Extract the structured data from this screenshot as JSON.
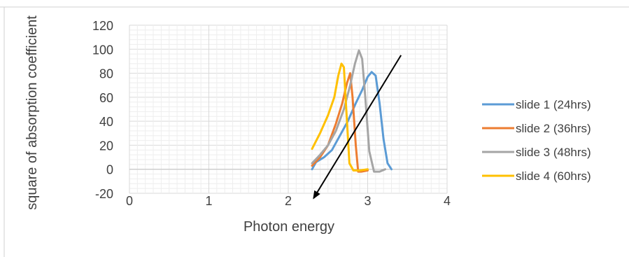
{
  "chart_data": {
    "type": "line",
    "title": "",
    "xlabel": "Photon energy",
    "ylabel": "square of absorption coefficient",
    "xlim": [
      0,
      4
    ],
    "ylim": [
      -20,
      120
    ],
    "x_ticks": [
      "0",
      "1",
      "2",
      "3",
      "4"
    ],
    "y_ticks": [
      "-20",
      "0",
      "20",
      "40",
      "60",
      "80",
      "100",
      "120"
    ],
    "grid": true,
    "legend_position": "right",
    "series": [
      {
        "name": "slide 1 (24hrs)",
        "color": "#5b9bd5",
        "x": [
          2.3,
          2.35,
          2.45,
          2.55,
          2.65,
          2.75,
          2.85,
          2.93,
          3.0,
          3.05,
          3.1,
          3.15,
          3.2,
          3.25,
          3.3
        ],
        "y": [
          0,
          6,
          10,
          16,
          28,
          40,
          55,
          66,
          77,
          81,
          78,
          55,
          25,
          5,
          0
        ]
      },
      {
        "name": "slide 2 (36hrs)",
        "color": "#ed7d31",
        "x": [
          2.3,
          2.4,
          2.5,
          2.6,
          2.68,
          2.74,
          2.78,
          2.81,
          2.85,
          2.88,
          2.92,
          3.0
        ],
        "y": [
          3,
          10,
          20,
          38,
          55,
          72,
          80,
          60,
          20,
          -2,
          -2,
          -1
        ]
      },
      {
        "name": "slide 3 (48hrs)",
        "color": "#a5a5a5",
        "x": [
          2.3,
          2.4,
          2.5,
          2.6,
          2.7,
          2.78,
          2.84,
          2.89,
          2.93,
          2.97,
          3.02,
          3.08,
          3.15,
          3.22
        ],
        "y": [
          5,
          12,
          20,
          32,
          50,
          70,
          88,
          99,
          92,
          60,
          15,
          -2,
          -2,
          0
        ]
      },
      {
        "name": "slide 4 (60hrs)",
        "color": "#ffc000",
        "x": [
          2.3,
          2.4,
          2.5,
          2.58,
          2.63,
          2.67,
          2.7,
          2.73,
          2.77,
          2.82,
          2.9,
          3.0
        ],
        "y": [
          17,
          30,
          45,
          60,
          78,
          88,
          85,
          50,
          5,
          -1,
          -1,
          0
        ]
      }
    ],
    "annotations": [
      {
        "type": "arrow",
        "from": [
          3.42,
          95
        ],
        "to": [
          2.32,
          -24
        ]
      }
    ]
  }
}
